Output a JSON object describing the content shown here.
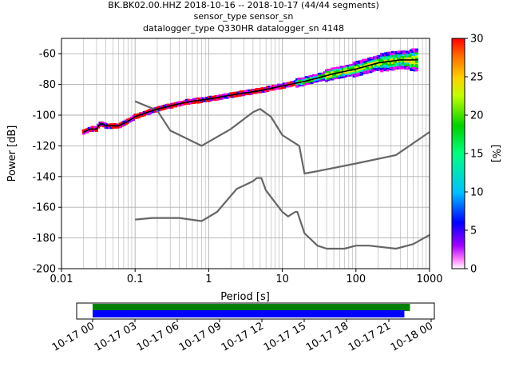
{
  "title_lines": [
    "BK.BK02.00.HHZ   2018-10-16 -- 2018-10-17  (44/44 segments)",
    "sensor_type  sensor_sn",
    "datalogger_type Q330HR datalogger_sn 4148"
  ],
  "colors": {
    "noise_model": "#666666",
    "mean_curve": "#000000",
    "grid": "#b0b0b0",
    "coverage_bar_1": "#008000",
    "coverage_bar_2": "#0000ff"
  },
  "colorbar": {
    "label": "[%]",
    "ticks": [
      "0",
      "5",
      "10",
      "15",
      "20",
      "25",
      "30"
    ],
    "min": 0,
    "max": 30
  },
  "chart_data": [
    {
      "type": "line",
      "xscale": "log",
      "xlabel": "Period [s]",
      "ylabel": "Power [dB]",
      "xlim": [
        0.01,
        1000
      ],
      "ylim": [
        -200,
        -50
      ],
      "xticks": [
        "0.01",
        "0.1",
        "1",
        "10",
        "100",
        "1000"
      ],
      "yticks": [
        "-200",
        "-180",
        "-160",
        "-140",
        "-120",
        "-100",
        "-80",
        "-60"
      ],
      "grid": true,
      "series": [
        {
          "points": [
            [
              0.1,
              -91
            ],
            [
              0.2,
              -97
            ],
            [
              0.3,
              -110
            ],
            [
              0.8,
              -120
            ],
            [
              2,
              -109
            ],
            [
              4,
              -98
            ],
            [
              5,
              -96
            ],
            [
              7,
              -101
            ],
            [
              10,
              -113
            ],
            [
              17,
              -120
            ],
            [
              20,
              -138
            ],
            [
              30,
              -136.5
            ],
            [
              100,
              -131.5
            ],
            [
              350,
              -126
            ],
            [
              1000,
              -111
            ]
          ]
        },
        {
          "points": [
            [
              0.1,
              -168
            ],
            [
              0.17,
              -167
            ],
            [
              0.4,
              -167
            ],
            [
              0.8,
              -169
            ],
            [
              1.3,
              -163
            ],
            [
              2.4,
              -148
            ],
            [
              4,
              -143
            ],
            [
              4.5,
              -141
            ],
            [
              5.2,
              -141
            ],
            [
              6,
              -149
            ],
            [
              10,
              -163
            ],
            [
              12,
              -166
            ],
            [
              15,
              -163
            ],
            [
              16,
              -163
            ],
            [
              20,
              -177
            ],
            [
              30,
              -185
            ],
            [
              40,
              -187
            ],
            [
              70,
              -187
            ],
            [
              100,
              -185
            ],
            [
              150,
              -185
            ],
            [
              350,
              -187
            ],
            [
              600,
              -184
            ],
            [
              1000,
              -178
            ]
          ]
        },
        {
          "points": [
            [
              0.02,
              -111
            ],
            [
              0.025,
              -109
            ],
            [
              0.03,
              -109
            ],
            [
              0.033,
              -106
            ],
            [
              0.036,
              -105.5
            ],
            [
              0.04,
              -107
            ],
            [
              0.06,
              -107
            ],
            [
              0.08,
              -104
            ],
            [
              0.1,
              -101
            ],
            [
              0.2,
              -96
            ],
            [
              0.5,
              -91.5
            ],
            [
              1,
              -89.5
            ],
            [
              2,
              -87
            ],
            [
              5,
              -84
            ],
            [
              10,
              -81
            ],
            [
              20,
              -78
            ],
            [
              50,
              -73
            ],
            [
              100,
              -70
            ],
            [
              200,
              -66
            ],
            [
              400,
              -64
            ],
            [
              700,
              -64
            ]
          ]
        }
      ]
    },
    {
      "type": "bar",
      "xticks": [
        "10-17 00",
        "10-17 03",
        "10-17 06",
        "10-17 09",
        "10-17 12",
        "10-17 15",
        "10-17 18",
        "10-17 21",
        "10-18 00"
      ],
      "series": [
        {
          "start_hour": 0,
          "end_hour": 22.5
        },
        {
          "start_hour": 0,
          "end_hour": 22.1
        }
      ]
    }
  ]
}
